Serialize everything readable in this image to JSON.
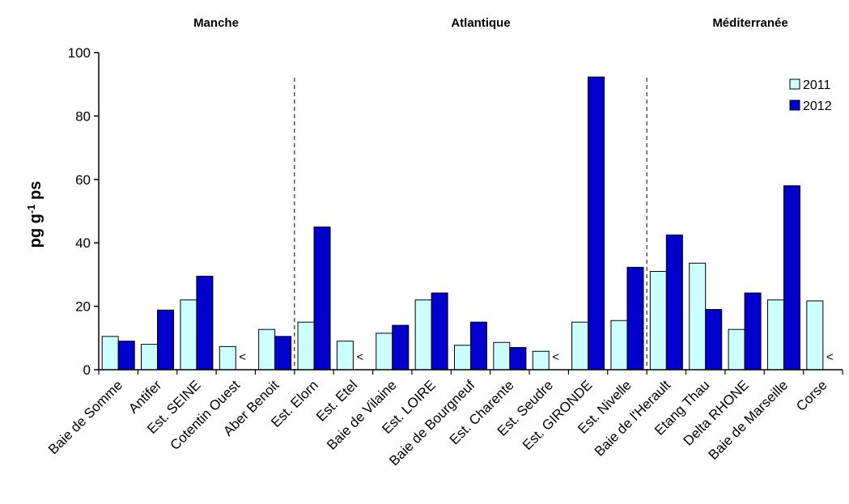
{
  "chart_data": {
    "type": "bar",
    "ylabel": "pg g-1 ps",
    "ylabel_parts": {
      "main": "pg g",
      "sup": "-1",
      "tail": " ps"
    },
    "ylim": [
      0,
      100
    ],
    "yticks": [
      "0",
      "20",
      "40",
      "60",
      "80",
      "100"
    ],
    "grid": false,
    "legend_position": "top-right",
    "region_labels": [
      "Manche",
      "Atlantique",
      "Méditerranée"
    ],
    "categories": [
      "Baie de Somme",
      "Antifer",
      "Est. SEINE",
      "Cotentin Ouest",
      "Aber Benoit",
      "Est. Elorn",
      "Est. Etel",
      "Baie de Vilaine",
      "Est. LOIRE",
      "Baie de Bourgneuf",
      "Est. Charente",
      "Est. Seudre",
      "Est. GIRONDE",
      "Est. Nivelle",
      "Baie de l'Herault",
      "Etang Thau",
      "Delta RHONE",
      "Baie de Marseille",
      "Corse"
    ],
    "series": [
      {
        "name": "2011",
        "color": "#ccffff",
        "values": [
          10.5,
          8,
          22,
          7.3,
          12.7,
          15,
          9,
          11.5,
          22,
          7.7,
          8.6,
          5.8,
          15,
          15.5,
          31,
          33.6,
          12.7,
          22,
          21.7
        ]
      },
      {
        "name": "2012",
        "color": "#0000cc",
        "values": [
          9,
          18.8,
          29.5,
          null,
          10.5,
          45,
          null,
          14,
          24.2,
          15,
          7,
          null,
          92.3,
          32.3,
          42.5,
          19,
          24.2,
          58,
          null
        ]
      }
    ],
    "below_limit_marker": "<",
    "below_limit_categories": [
      "Cotentin Ouest",
      "Est. Etel",
      "Est. Seudre",
      "Corse"
    ],
    "separators_after": [
      "Aber Benoit",
      "Est. Nivelle"
    ]
  }
}
